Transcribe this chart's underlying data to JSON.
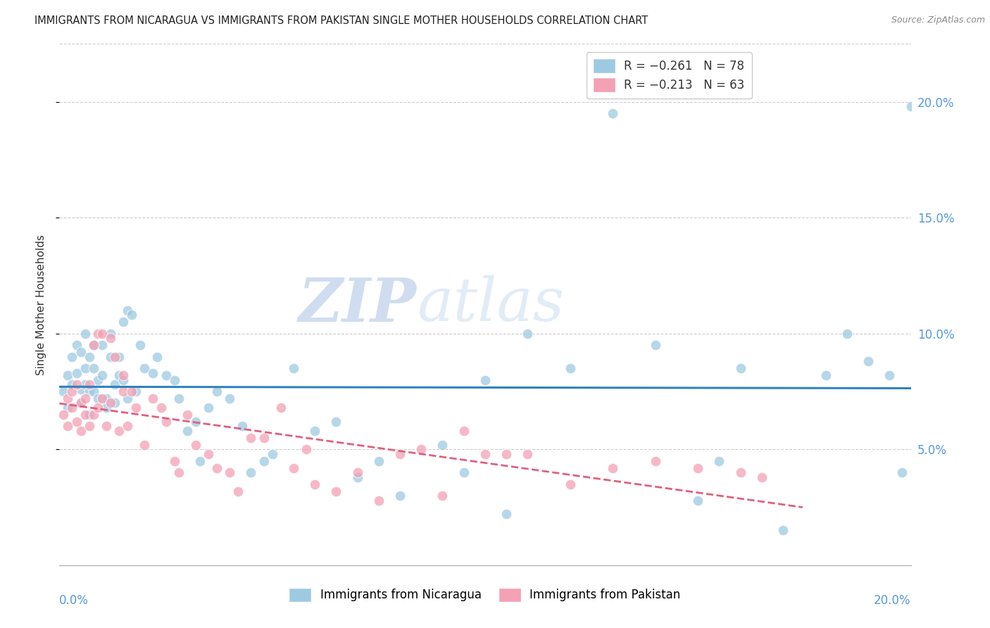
{
  "title": "IMMIGRANTS FROM NICARAGUA VS IMMIGRANTS FROM PAKISTAN SINGLE MOTHER HOUSEHOLDS CORRELATION CHART",
  "source": "Source: ZipAtlas.com",
  "ylabel": "Single Mother Households",
  "legend_nicaragua": "R = -0.261   N = 78",
  "legend_pakistan": "R = -0.213   N = 63",
  "xlim": [
    0.0,
    0.2
  ],
  "ylim": [
    0.0,
    0.225
  ],
  "yticks": [
    0.05,
    0.1,
    0.15,
    0.2
  ],
  "ytick_labels": [
    "5.0%",
    "10.0%",
    "15.0%",
    "20.0%"
  ],
  "color_nicaragua": "#9ecae1",
  "color_pakistan": "#f4a0b5",
  "color_line_nicaragua": "#3182bd",
  "color_line_pakistan": "#e06080",
  "watermark_zip": "ZIP",
  "watermark_atlas": "atlas",
  "nicaragua_x": [
    0.001,
    0.002,
    0.002,
    0.003,
    0.003,
    0.004,
    0.004,
    0.005,
    0.005,
    0.005,
    0.006,
    0.006,
    0.006,
    0.007,
    0.007,
    0.007,
    0.008,
    0.008,
    0.008,
    0.009,
    0.009,
    0.01,
    0.01,
    0.011,
    0.011,
    0.012,
    0.012,
    0.013,
    0.013,
    0.014,
    0.014,
    0.015,
    0.015,
    0.016,
    0.016,
    0.017,
    0.018,
    0.019,
    0.02,
    0.022,
    0.023,
    0.025,
    0.027,
    0.028,
    0.03,
    0.032,
    0.033,
    0.035,
    0.037,
    0.04,
    0.043,
    0.045,
    0.048,
    0.05,
    0.055,
    0.06,
    0.065,
    0.07,
    0.075,
    0.08,
    0.09,
    0.095,
    0.1,
    0.105,
    0.11,
    0.12,
    0.13,
    0.14,
    0.15,
    0.155,
    0.16,
    0.17,
    0.18,
    0.185,
    0.19,
    0.195,
    0.198,
    0.2
  ],
  "nicaragua_y": [
    0.075,
    0.082,
    0.068,
    0.09,
    0.078,
    0.095,
    0.083,
    0.092,
    0.076,
    0.07,
    0.1,
    0.085,
    0.078,
    0.09,
    0.075,
    0.065,
    0.095,
    0.085,
    0.075,
    0.08,
    0.072,
    0.095,
    0.082,
    0.072,
    0.068,
    0.1,
    0.09,
    0.07,
    0.078,
    0.09,
    0.082,
    0.105,
    0.08,
    0.11,
    0.072,
    0.108,
    0.075,
    0.095,
    0.085,
    0.083,
    0.09,
    0.082,
    0.08,
    0.072,
    0.058,
    0.062,
    0.045,
    0.068,
    0.075,
    0.072,
    0.06,
    0.04,
    0.045,
    0.048,
    0.085,
    0.058,
    0.062,
    0.038,
    0.045,
    0.03,
    0.052,
    0.04,
    0.08,
    0.022,
    0.1,
    0.085,
    0.195,
    0.095,
    0.028,
    0.045,
    0.085,
    0.015,
    0.082,
    0.1,
    0.088,
    0.082,
    0.04,
    0.198
  ],
  "pakistan_x": [
    0.001,
    0.002,
    0.002,
    0.003,
    0.003,
    0.004,
    0.004,
    0.005,
    0.005,
    0.006,
    0.006,
    0.007,
    0.007,
    0.008,
    0.008,
    0.009,
    0.009,
    0.01,
    0.01,
    0.011,
    0.012,
    0.012,
    0.013,
    0.014,
    0.015,
    0.015,
    0.016,
    0.017,
    0.018,
    0.02,
    0.022,
    0.024,
    0.025,
    0.027,
    0.028,
    0.03,
    0.032,
    0.035,
    0.037,
    0.04,
    0.042,
    0.045,
    0.048,
    0.052,
    0.055,
    0.058,
    0.06,
    0.065,
    0.07,
    0.075,
    0.08,
    0.085,
    0.09,
    0.095,
    0.1,
    0.105,
    0.11,
    0.12,
    0.13,
    0.14,
    0.15,
    0.16,
    0.165
  ],
  "pakistan_y": [
    0.065,
    0.072,
    0.06,
    0.075,
    0.068,
    0.062,
    0.078,
    0.07,
    0.058,
    0.072,
    0.065,
    0.078,
    0.06,
    0.095,
    0.065,
    0.1,
    0.068,
    0.1,
    0.072,
    0.06,
    0.098,
    0.07,
    0.09,
    0.058,
    0.082,
    0.075,
    0.06,
    0.075,
    0.068,
    0.052,
    0.072,
    0.068,
    0.062,
    0.045,
    0.04,
    0.065,
    0.052,
    0.048,
    0.042,
    0.04,
    0.032,
    0.055,
    0.055,
    0.068,
    0.042,
    0.05,
    0.035,
    0.032,
    0.04,
    0.028,
    0.048,
    0.05,
    0.03,
    0.058,
    0.048,
    0.048,
    0.048,
    0.035,
    0.042,
    0.045,
    0.042,
    0.04,
    0.038
  ]
}
